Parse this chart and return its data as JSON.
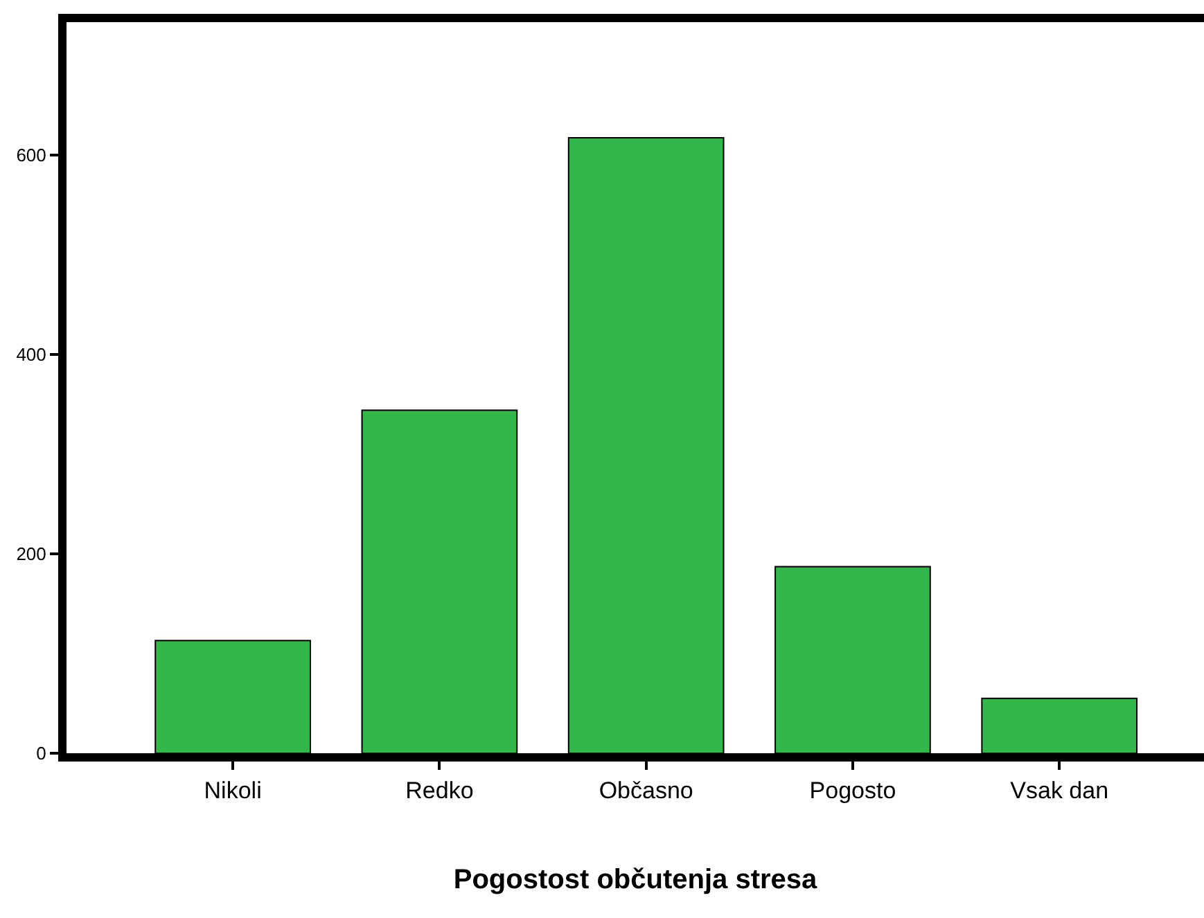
{
  "chart_data": {
    "type": "bar",
    "xlabel": "Pogostost občutenja stresa",
    "categories": [
      "Nikoli",
      "Redko",
      "Občasno",
      "Pogosto",
      "Vsak dan"
    ],
    "values": [
      113,
      344,
      617,
      187,
      55
    ],
    "color": "#31b74a",
    "ylim": [
      0,
      733
    ],
    "yticks": [
      0,
      200,
      400,
      600
    ],
    "grid": false
  }
}
